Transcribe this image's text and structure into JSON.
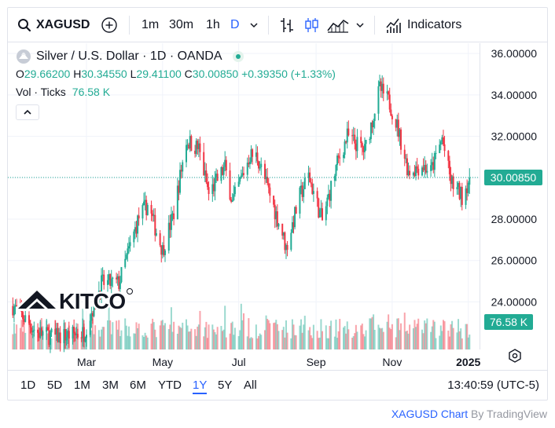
{
  "toolbar": {
    "symbol": "XAGUSD",
    "intervals": [
      "1m",
      "30m",
      "1h",
      "D"
    ],
    "active_interval": "D",
    "indicators_label": "Indicators"
  },
  "legend": {
    "title": "Silver / U.S. Dollar · 1D · OANDA",
    "o_label": "O",
    "o": "29.66200",
    "h_label": "H",
    "h": "30.34550",
    "l_label": "L",
    "l": "29.41100",
    "c_label": "C",
    "c": "30.00850",
    "change": "+0.39350 (+1.33%)",
    "vol_label": "Vol · Ticks",
    "vol": "76.58 K"
  },
  "watermark": "KITCO",
  "ranges": [
    "1D",
    "5D",
    "1M",
    "3M",
    "6M",
    "YTD",
    "1Y",
    "5Y",
    "All"
  ],
  "active_range": "1Y",
  "clock": "13:40:59 (UTC-5)",
  "attribution": {
    "symbol": "XAGUSD Chart",
    "by": "By TradingView"
  },
  "colors": {
    "up": "#22ab94",
    "down": "#f23645",
    "accent": "#2962ff"
  },
  "chart_data": {
    "type": "candlestick",
    "price_axis_ticks": [
      "36.00000",
      "34.00000",
      "32.00000",
      "30.00000",
      "28.00000",
      "26.00000",
      "24.00000"
    ],
    "time_axis_labels": [
      "Mar",
      "May",
      "Jul",
      "Sep",
      "Nov",
      "2025"
    ],
    "last_price_label": "30.00850",
    "last_price": 30.0085,
    "volume_label": "76.58 K",
    "ylim": [
      21.7,
      36.5
    ],
    "anchors": [
      {
        "x": "2024-01-02",
        "y": 23.8
      },
      {
        "x": "2024-01-22",
        "y": 22.5
      },
      {
        "x": "2024-02-05",
        "y": 22.3
      },
      {
        "x": "2024-02-28",
        "y": 22.5
      },
      {
        "x": "2024-03-13",
        "y": 24.9
      },
      {
        "x": "2024-03-27",
        "y": 24.9
      },
      {
        "x": "2024-04-12",
        "y": 28.1
      },
      {
        "x": "2024-04-19",
        "y": 28.7
      },
      {
        "x": "2024-05-01",
        "y": 26.5
      },
      {
        "x": "2024-05-10",
        "y": 28.3
      },
      {
        "x": "2024-05-20",
        "y": 31.8
      },
      {
        "x": "2024-05-30",
        "y": 31.4
      },
      {
        "x": "2024-06-07",
        "y": 29.2
      },
      {
        "x": "2024-06-20",
        "y": 30.5
      },
      {
        "x": "2024-06-26",
        "y": 28.8
      },
      {
        "x": "2024-07-10",
        "y": 31.1
      },
      {
        "x": "2024-07-16",
        "y": 31.0
      },
      {
        "x": "2024-08-05",
        "y": 27.3
      },
      {
        "x": "2024-08-08",
        "y": 26.6
      },
      {
        "x": "2024-08-19",
        "y": 29.1
      },
      {
        "x": "2024-08-26",
        "y": 30.1
      },
      {
        "x": "2024-09-06",
        "y": 27.9
      },
      {
        "x": "2024-09-18",
        "y": 30.7
      },
      {
        "x": "2024-09-26",
        "y": 32.0
      },
      {
        "x": "2024-10-10",
        "y": 31.3
      },
      {
        "x": "2024-10-22",
        "y": 34.3
      },
      {
        "x": "2024-10-30",
        "y": 33.6
      },
      {
        "x": "2024-11-05",
        "y": 32.5
      },
      {
        "x": "2024-11-14",
        "y": 30.3
      },
      {
        "x": "2024-11-25",
        "y": 30.6
      },
      {
        "x": "2024-12-02",
        "y": 30.3
      },
      {
        "x": "2024-12-11",
        "y": 31.9
      },
      {
        "x": "2024-12-18",
        "y": 29.8
      },
      {
        "x": "2024-12-27",
        "y": 29.1
      },
      {
        "x": "2025-01-02",
        "y": 30.0
      }
    ]
  }
}
